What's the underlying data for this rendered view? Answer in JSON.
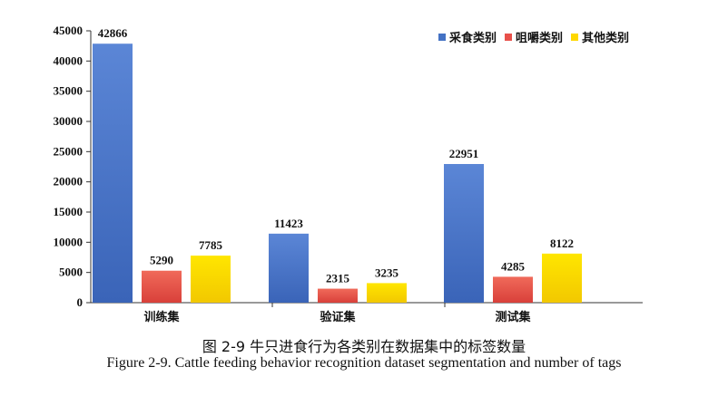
{
  "chart_data": {
    "type": "bar",
    "categories": [
      "训练集",
      "验证集",
      "测试集"
    ],
    "series": [
      {
        "name": "采食类别",
        "values": [
          42866,
          11423,
          22951
        ]
      },
      {
        "name": "咀嚼类别",
        "values": [
          5290,
          2315,
          4285
        ]
      },
      {
        "name": "其他类别",
        "values": [
          7785,
          3235,
          8122
        ]
      }
    ],
    "ylim": [
      0,
      45000
    ],
    "yticks": [
      0,
      5000,
      10000,
      15000,
      20000,
      25000,
      30000,
      35000,
      40000,
      45000
    ],
    "xlabel": "",
    "ylabel": "",
    "grid": false,
    "legend": "top-right",
    "colors": [
      "#4472c4",
      "#e8504a",
      "#ffd800"
    ]
  },
  "caption": {
    "zh": "图 2-9 牛只进食行为各类别在数据集中的标签数量",
    "en": "Figure 2-9. Cattle feeding behavior recognition dataset segmentation and number of tags"
  }
}
